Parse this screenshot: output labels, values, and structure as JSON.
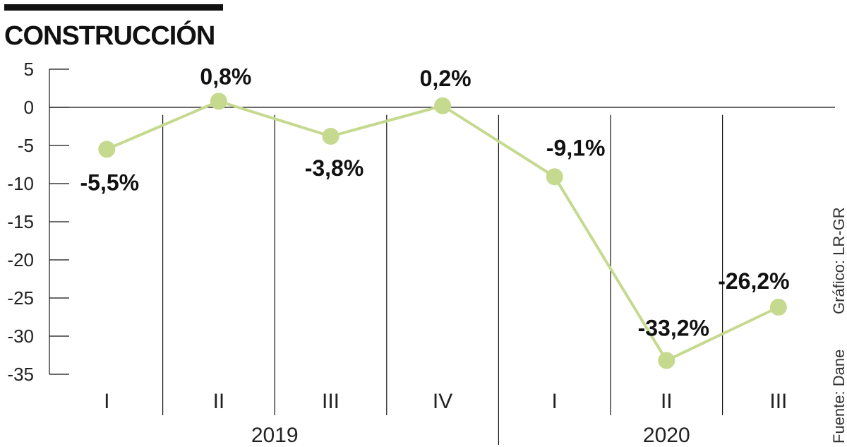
{
  "title": "CONSTRUCCIÓN",
  "source": "Fuente: Dane",
  "credit": "Gráfico: LR-GR",
  "colors": {
    "line": "#c5d98f",
    "marker": "#c5d98f",
    "axis": "#111111",
    "text": "#111111"
  },
  "chart_data": {
    "type": "line",
    "title": "CONSTRUCCIÓN",
    "categories": [
      "I",
      "II",
      "III",
      "IV",
      "I",
      "II",
      "III"
    ],
    "groups": [
      {
        "label": "2019",
        "categories": [
          "I",
          "II",
          "III",
          "IV"
        ]
      },
      {
        "label": "2020",
        "categories": [
          "I",
          "II",
          "III"
        ]
      }
    ],
    "series": [
      {
        "values": [
          -5.5,
          0.8,
          -3.8,
          0.2,
          -9.1,
          -33.2,
          -26.2
        ]
      }
    ],
    "data_labels": [
      "-5,5%",
      "0,8%",
      "-3,8%",
      "0,2%",
      "-9,1%",
      "-33,2%",
      "-26,2%"
    ],
    "yticks": [
      5,
      0,
      -5,
      -10,
      -15,
      -20,
      -25,
      -30,
      -35
    ],
    "ylim": [
      -35,
      5
    ],
    "grid": "vertical separators between quarters",
    "legend": "none"
  }
}
